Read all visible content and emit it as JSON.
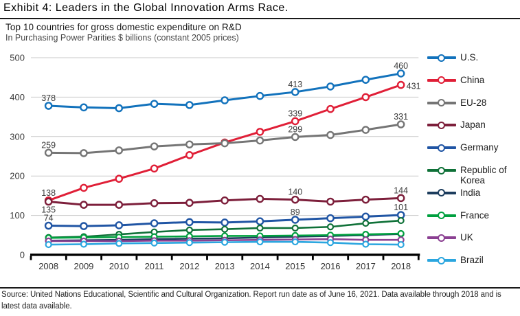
{
  "header": {
    "title": "Exhibit 4: Leaders in the Global Innovation Arms Race."
  },
  "footer": {
    "source": "Source: United Nations Educational, Scientific and Cultural Organization. Report run date as of June 16, 2021. Data available through 2018 and is latest data available."
  },
  "chart_data": {
    "type": "line",
    "title": "Top 10 countries for gross domestic expenditure on R&D",
    "subtitle": "In Purchasing Power Parities $ billions (constant 2005 prices)",
    "xlabel": "",
    "ylabel": "",
    "x": [
      2008,
      2009,
      2010,
      2011,
      2012,
      2013,
      2014,
      2015,
      2016,
      2017,
      2018
    ],
    "ylim": [
      0,
      500
    ],
    "yticks": [
      0,
      100,
      200,
      300,
      400,
      500
    ],
    "grid": true,
    "legend_position": "right",
    "marker": "open-circle",
    "series": [
      {
        "name": "U.S.",
        "color": "#1272BC",
        "values": [
          378,
          374,
          372,
          383,
          380,
          392,
          403,
          413,
          427,
          444,
          460
        ],
        "point_labels": [
          {
            "year": 2008,
            "text": "378"
          },
          {
            "year": 2015,
            "text": "413"
          },
          {
            "year": 2018,
            "text": "460"
          }
        ]
      },
      {
        "name": "China",
        "color": "#E01F37",
        "values": [
          138,
          170,
          193,
          219,
          253,
          285,
          312,
          339,
          370,
          400,
          431
        ],
        "point_labels": [
          {
            "year": 2008,
            "text": "138"
          },
          {
            "year": 2015,
            "text": "339"
          },
          {
            "year": 2018,
            "text": "431"
          }
        ]
      },
      {
        "name": "EU-28",
        "color": "#757575",
        "values": [
          259,
          258,
          265,
          275,
          280,
          283,
          290,
          299,
          304,
          317,
          331
        ],
        "point_labels": [
          {
            "year": 2008,
            "text": "259"
          },
          {
            "year": 2015,
            "text": "299"
          },
          {
            "year": 2018,
            "text": "331"
          }
        ]
      },
      {
        "name": "Japan",
        "color": "#7D1F3B",
        "values": [
          135,
          127,
          127,
          131,
          132,
          138,
          142,
          140,
          135,
          140,
          144
        ],
        "point_labels": [
          {
            "year": 2008,
            "text": "135"
          },
          {
            "year": 2015,
            "text": "140"
          },
          {
            "year": 2018,
            "text": "144"
          }
        ]
      },
      {
        "name": "Germany",
        "color": "#2055A4",
        "values": [
          74,
          73,
          75,
          80,
          83,
          82,
          85,
          89,
          93,
          97,
          101
        ],
        "point_labels": [
          {
            "year": 2008,
            "text": "74"
          },
          {
            "year": 2015,
            "text": "89"
          },
          {
            "year": 2018,
            "text": "101"
          }
        ]
      },
      {
        "name": "Republic of Korea",
        "color": "#0F7138",
        "values": [
          44,
          46,
          52,
          58,
          63,
          65,
          68,
          68,
          71,
          80,
          87
        ],
        "point_labels": []
      },
      {
        "name": "India",
        "color": "#1D3D5E",
        "values": [
          36,
          37,
          38,
          40,
          41,
          42,
          44,
          46,
          48,
          50,
          53
        ],
        "point_labels": []
      },
      {
        "name": "France",
        "color": "#00A03F",
        "values": [
          43,
          44,
          45,
          46,
          47,
          48,
          48,
          49,
          50,
          52,
          54
        ],
        "point_labels": []
      },
      {
        "name": "UK",
        "color": "#8B4092",
        "values": [
          35,
          35,
          35,
          36,
          36,
          37,
          38,
          39,
          40,
          38,
          38
        ],
        "point_labels": []
      },
      {
        "name": "Brazil",
        "color": "#2BA6DF",
        "values": [
          26,
          27,
          29,
          30,
          31,
          32,
          33,
          33,
          31,
          27,
          26
        ],
        "point_labels": []
      }
    ]
  }
}
